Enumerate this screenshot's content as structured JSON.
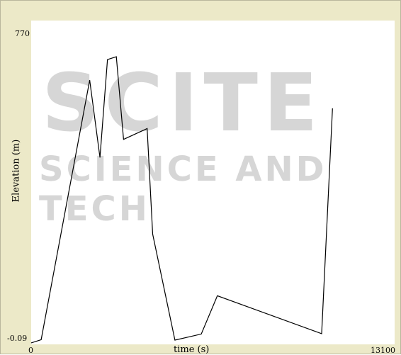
{
  "chart_data": {
    "type": "line",
    "title": "",
    "xlabel": "time (s)",
    "ylabel": "Elevation (m)",
    "xlim": [
      0,
      13100
    ],
    "ylim": [
      -0.09,
      770
    ],
    "x_tick_labels": [
      "0",
      "13100"
    ],
    "y_tick_labels": [
      "770",
      "-0.09"
    ],
    "grid": false,
    "line_color": "#000000",
    "series": [
      {
        "x": [
          0,
          360,
          2110,
          2480,
          2750,
          3070,
          3330,
          4180,
          4380,
          5180,
          6130,
          6710,
          10470,
          10860
        ],
        "y": [
          0,
          8,
          652,
          460,
          703,
          710,
          505,
          532,
          270,
          7,
          22,
          117,
          23,
          582
        ]
      }
    ]
  },
  "watermark": {
    "main": "SCITE",
    "sub": "SCIENCE AND TECH"
  }
}
